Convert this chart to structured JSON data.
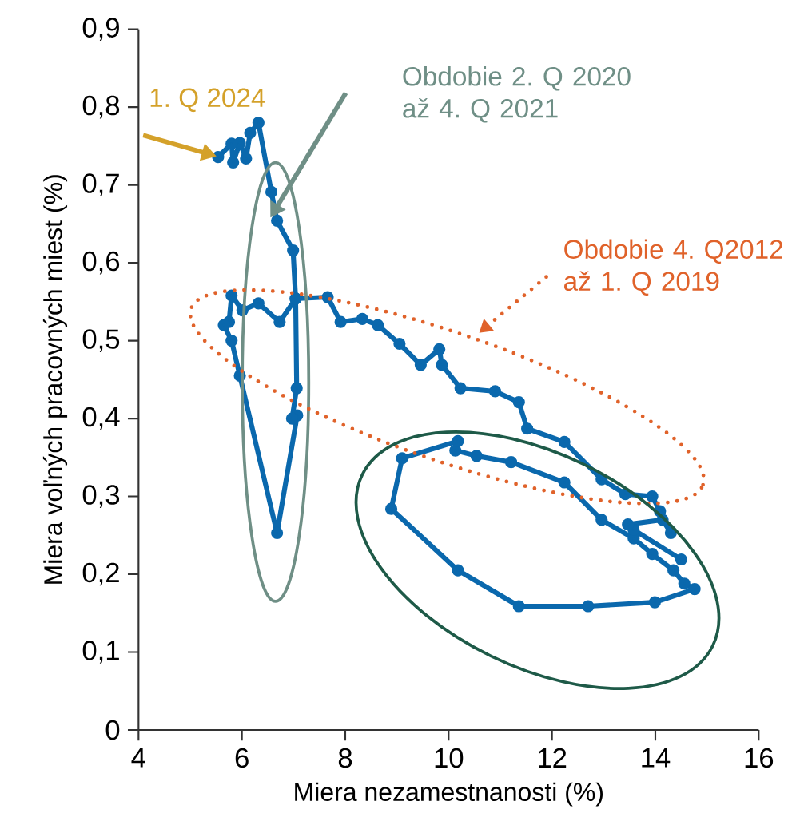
{
  "chart_data": {
    "type": "line",
    "xlabel": "Miera nezamestnanosti (%)",
    "ylabel": "Miera voľných pracovných miest (%)",
    "xlim": [
      4,
      16
    ],
    "ylim": [
      0,
      0.9
    ],
    "xticks": [
      4,
      6,
      8,
      10,
      12,
      14,
      16
    ],
    "yticks": [
      0,
      {
        "value": 0.1,
        "label": "0,1"
      },
      {
        "value": 0.2,
        "label": "0,2"
      },
      {
        "value": 0.3,
        "label": "0,3"
      },
      {
        "value": 0.4,
        "label": "0,4"
      },
      {
        "value": 0.5,
        "label": "0,5"
      },
      {
        "value": 0.6,
        "label": "0,6"
      },
      {
        "value": 0.7,
        "label": "0,7"
      },
      {
        "value": 0.8,
        "label": "0,8"
      },
      {
        "value": 0.9,
        "label": "0,9"
      }
    ],
    "marker": "circle",
    "line_style": "solid",
    "annotations": [
      "1. Q 2024",
      "Obdobie 2. Q 2020 až 4. Q 2021",
      "Obdobie 4. Q2012 až 1. Q 2019"
    ],
    "series": [
      {
        "color": "#0a68ad",
        "x": [
          10.13,
          10.54,
          11.21,
          12.24,
          12.96,
          13.58,
          13.94,
          14.35,
          14.56,
          14.76,
          13.99,
          12.7,
          11.36,
          10.18,
          8.89,
          9.1,
          10.18,
          null,
          14.5,
          13.58,
          13.47,
          14.14,
          14.3,
          14.09,
          13.94,
          13.42,
          12.96,
          12.24,
          11.52,
          11.36,
          10.9,
          10.23,
          9.87,
          9.82,
          9.46,
          9.05,
          8.63,
          8.33,
          7.91,
          7.66,
          7.04,
          6.73,
          6.32,
          6.01,
          5.8,
          5.75,
          5.65,
          5.8,
          5.96,
          6.68,
          7.07,
          6.97,
          7.06,
          7.04,
          6.99,
          6.68,
          6.57,
          6.32,
          6.16,
          6.08,
          5.96,
          5.83,
          5.8,
          5.54
        ],
        "values": [
          0.359,
          0.352,
          0.344,
          0.318,
          0.27,
          0.246,
          0.226,
          0.205,
          0.188,
          0.181,
          0.164,
          0.159,
          0.159,
          0.205,
          0.284,
          0.349,
          0.371,
          null,
          0.219,
          0.257,
          0.264,
          0.27,
          0.253,
          0.281,
          0.3,
          0.303,
          0.322,
          0.37,
          0.387,
          0.421,
          0.435,
          0.439,
          0.469,
          0.489,
          0.469,
          0.496,
          0.52,
          0.528,
          0.524,
          0.556,
          0.554,
          0.524,
          0.548,
          0.539,
          0.558,
          0.524,
          0.52,
          0.5,
          0.455,
          0.253,
          0.404,
          0.4,
          0.439,
          0.554,
          0.616,
          0.654,
          0.691,
          0.78,
          0.767,
          0.734,
          0.754,
          0.729,
          0.753,
          0.736
        ]
      }
    ]
  }
}
